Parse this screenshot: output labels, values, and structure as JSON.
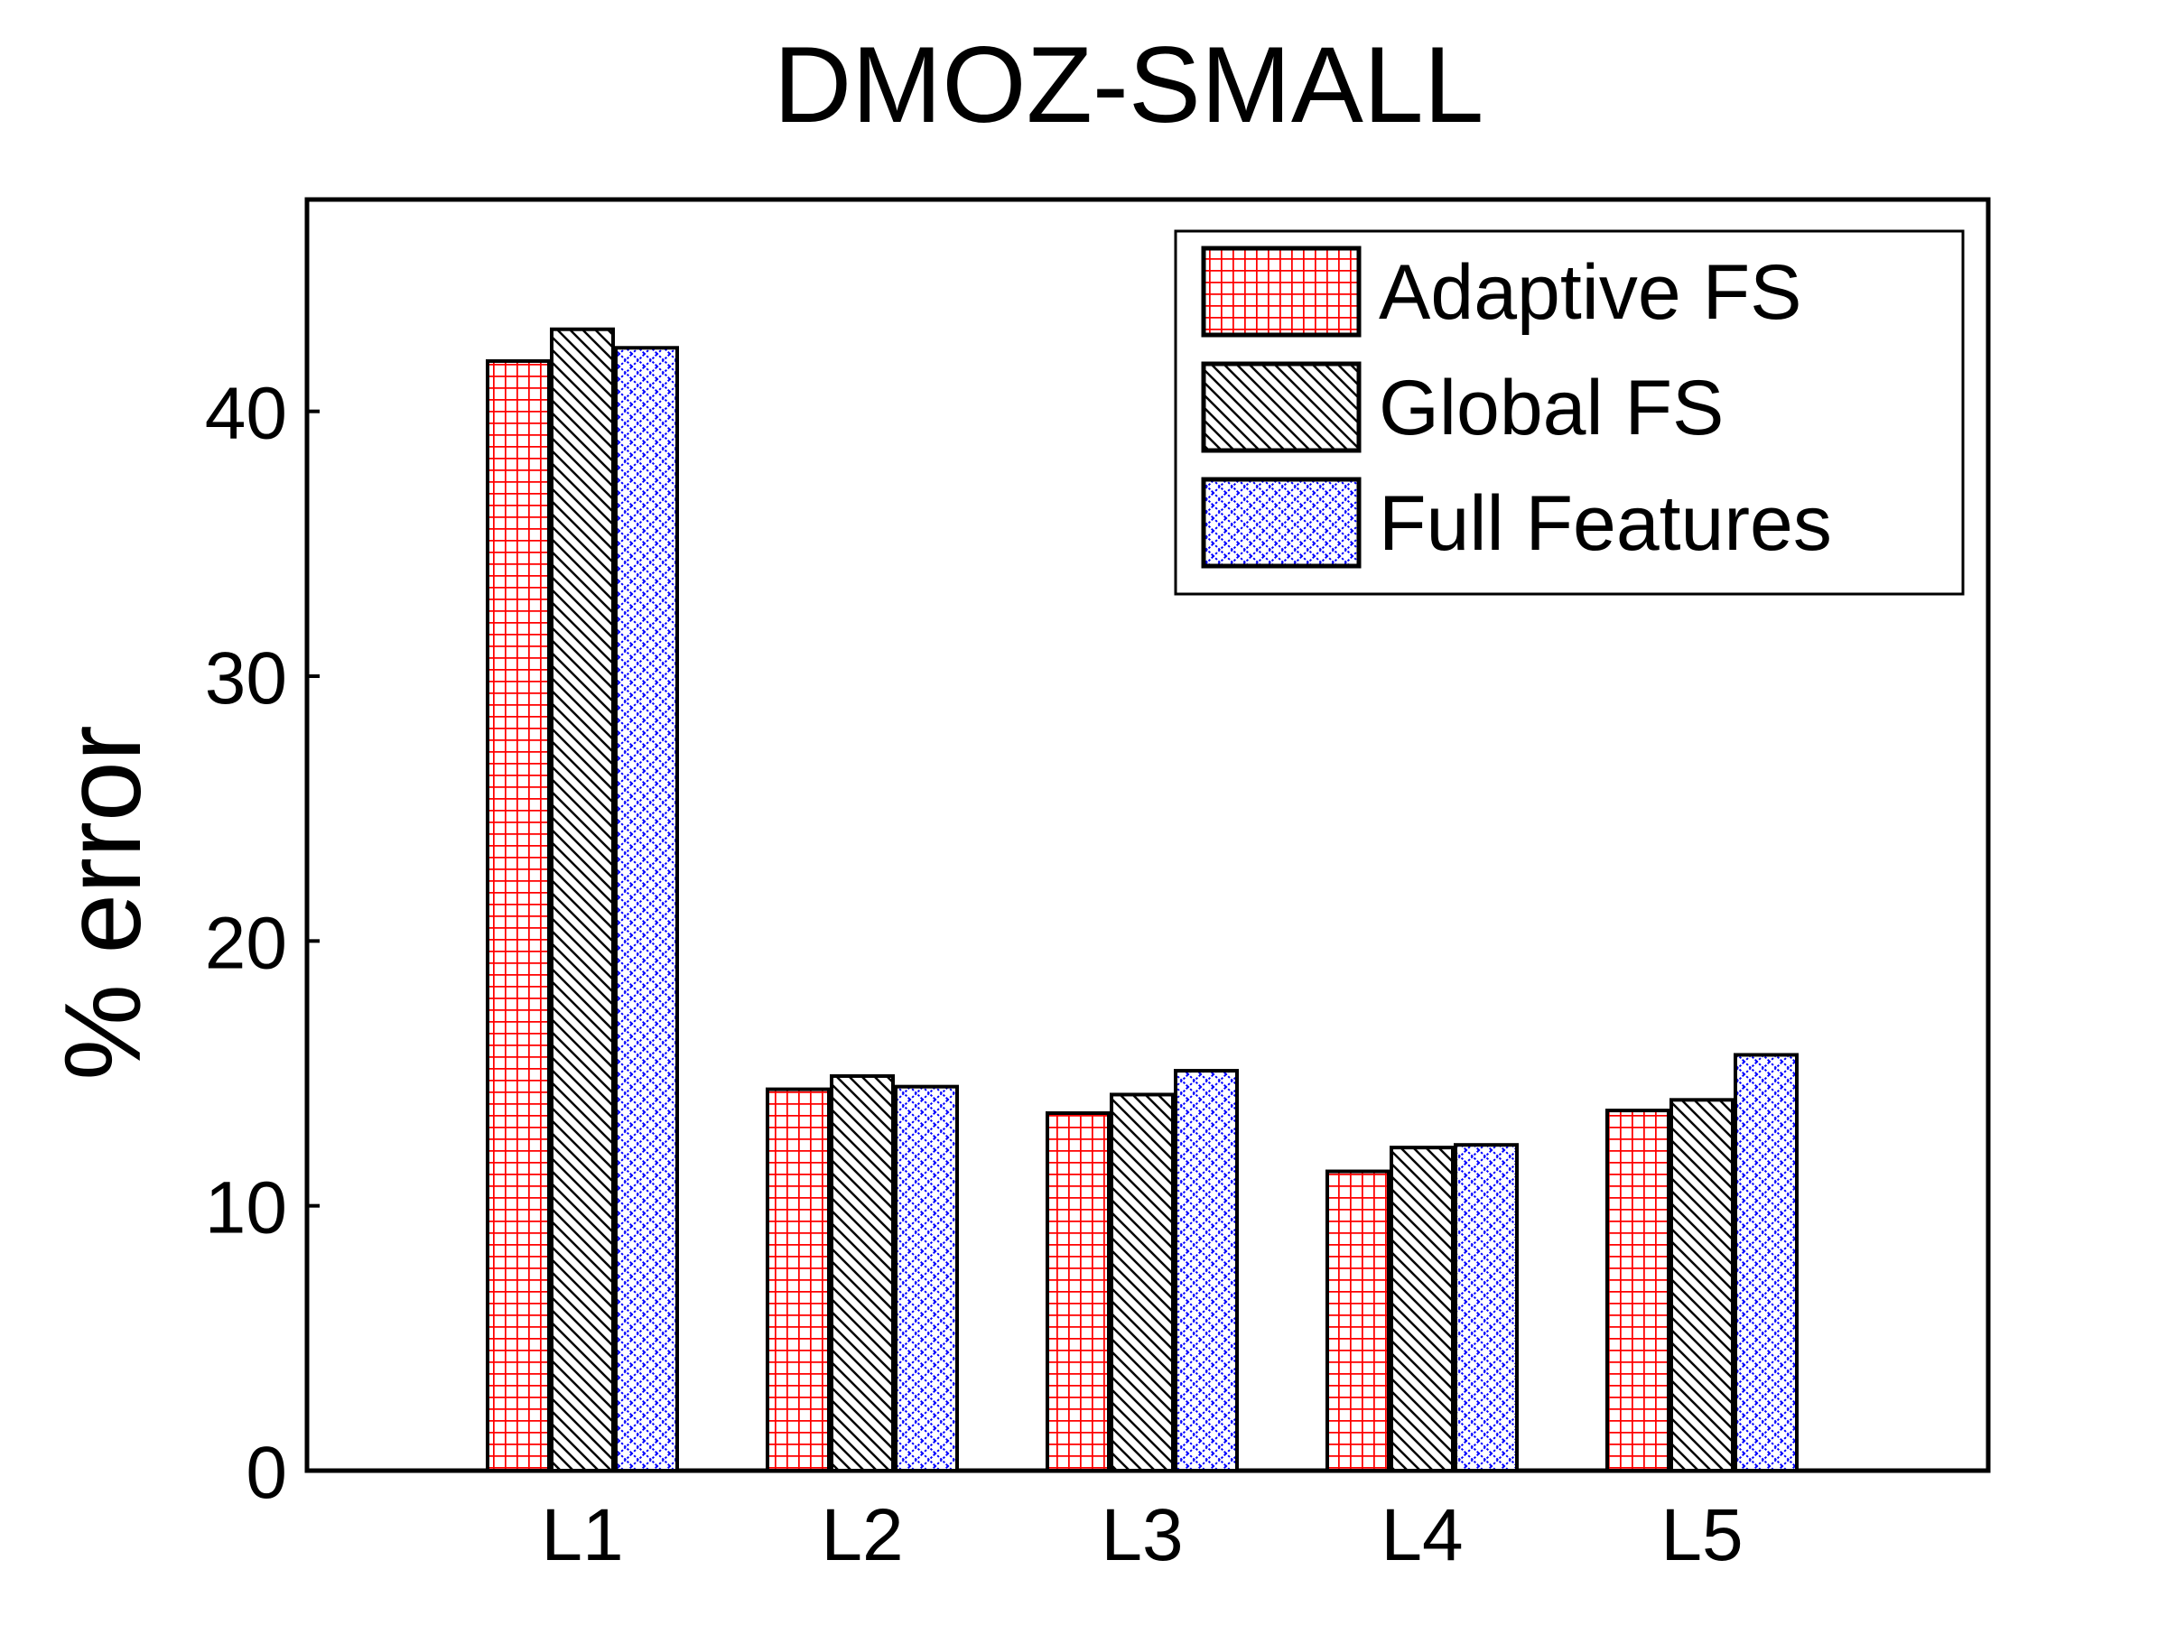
{
  "chart_data": {
    "type": "bar",
    "title": "DMOZ-SMALL",
    "xlabel": "",
    "ylabel": "% error",
    "categories": [
      "L1",
      "L2",
      "L3",
      "L4",
      "L5"
    ],
    "ylim": [
      0,
      48
    ],
    "yticks": [
      0,
      10,
      20,
      30,
      40
    ],
    "grid": false,
    "legend_position": "top-right",
    "series": [
      {
        "name": "Adaptive FS",
        "values": [
          41.9,
          14.4,
          13.5,
          11.3,
          13.6
        ],
        "pattern": "grid",
        "color": "#ff0000"
      },
      {
        "name": "Global FS",
        "values": [
          43.1,
          14.9,
          14.2,
          12.2,
          14.0
        ],
        "pattern": "diagonal-hatch",
        "color": "#000000"
      },
      {
        "name": "Full Features",
        "values": [
          42.4,
          14.5,
          15.1,
          12.3,
          15.7
        ],
        "pattern": "crosshatch",
        "color": "#0000ff"
      }
    ]
  }
}
